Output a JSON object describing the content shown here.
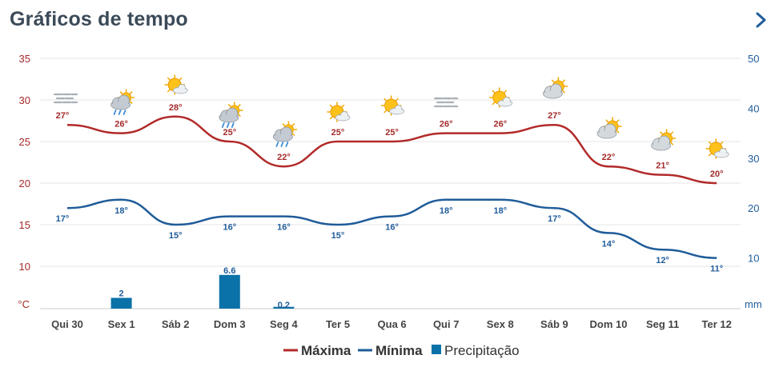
{
  "header": {
    "title": "Gráficos de tempo"
  },
  "chart_data": {
    "type": "line",
    "categories": [
      "Qui 30",
      "Sex 1",
      "Sáb 2",
      "Dom 3",
      "Seg 4",
      "Ter 5",
      "Qua 6",
      "Qui 7",
      "Sex 8",
      "Sáb 9",
      "Dom 10",
      "Seg 11",
      "Ter 12"
    ],
    "series": [
      {
        "name": "Máxima",
        "axis": "left",
        "color": "#b22a2a",
        "values": [
          27,
          26,
          28,
          25,
          22,
          25,
          25,
          26,
          26,
          27,
          22,
          21,
          20
        ],
        "labels": [
          "27°",
          "26°",
          "28°",
          "25°",
          "22°",
          "25°",
          "25°",
          "26°",
          "26°",
          "27°",
          "22°",
          "21°",
          "20°"
        ]
      },
      {
        "name": "Mínima",
        "axis": "left",
        "color": "#1f5c99",
        "values": [
          17,
          18,
          15,
          16,
          16,
          15,
          16,
          18,
          18,
          17,
          14,
          12,
          11
        ],
        "labels": [
          "17°",
          "18°",
          "15°",
          "16°",
          "16°",
          "15°",
          "16°",
          "18°",
          "18°",
          "17°",
          "14°",
          "12°",
          "11°"
        ]
      },
      {
        "name": "Precipitação",
        "type": "bar",
        "axis": "right",
        "color": "#0a72a8",
        "values": [
          null,
          2,
          null,
          6.6,
          0.2,
          null,
          null,
          null,
          null,
          null,
          null,
          null,
          null
        ],
        "labels": [
          "",
          "2",
          "",
          "6.6",
          "0.2",
          "",
          "",
          "",
          "",
          "",
          "",
          "",
          ""
        ]
      }
    ],
    "y_left": {
      "unit": "°C",
      "ticks": [
        "35",
        "30",
        "25",
        "20",
        "15",
        "10"
      ],
      "range": [
        5,
        35
      ]
    },
    "y_right": {
      "unit": "mm",
      "ticks": [
        "50",
        "40",
        "30",
        "20",
        "10"
      ],
      "range": [
        0,
        50
      ]
    },
    "weather_icons": [
      "fog-icon",
      "rain-icon",
      "sun-cloud-icon",
      "rain-icon",
      "rain-icon",
      "sun-cloud-icon",
      "sun-cloud-icon",
      "fog-icon",
      "sun-cloud-icon",
      "cloud-sun-icon",
      "cloud-sun-icon",
      "cloud-sun-icon",
      "sun-cloud-icon"
    ],
    "grid": true,
    "legend": "bottom-center",
    "colors": {
      "max": "#b22a2a",
      "min": "#1f5c99",
      "precip": "#0a72a8",
      "title": "#3c4a58"
    }
  }
}
